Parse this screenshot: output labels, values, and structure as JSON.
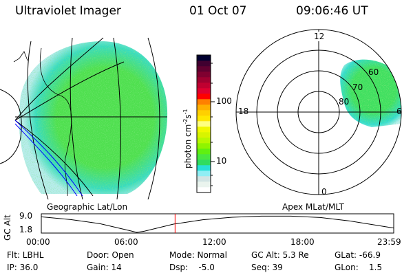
{
  "header": {
    "instrument": "Ultraviolet Imager",
    "date": "01 Oct 07",
    "time": "09:06:46 UT"
  },
  "colorbar": {
    "label": "photon cm",
    "label_sup1": "-2",
    "label_mid": "s",
    "label_sup2": "-1",
    "ticks": [
      "100",
      "10"
    ],
    "colors": [
      "#ffffff",
      "#eaf4ee",
      "#d2e4e4",
      "#90eef4",
      "#28e0d8",
      "#30dc60",
      "#48e840",
      "#60f010",
      "#90f400",
      "#b8f800",
      "#d8f400",
      "#f0f800",
      "#ffff80",
      "#ffe800",
      "#ffd000",
      "#ffb000",
      "#ff8000",
      "#ff0000",
      "#e00030",
      "#c00030",
      "#a00030",
      "#800030",
      "#600030",
      "#400030",
      "#000030"
    ]
  },
  "polar": {
    "mlt_labels": {
      "top": "12",
      "bottom": "0",
      "left": "18",
      "right": "6"
    },
    "lat_labels": [
      "80",
      "70",
      "60"
    ]
  },
  "timeline": {
    "left_label": "Geographic Lat/Lon",
    "right_label": "Apex MLat/MLT",
    "ylabel": "GC Alt",
    "yticks": [
      "9.0",
      "1.8"
    ],
    "xticks": [
      "00:00",
      "06:00",
      "12:00",
      "18:00",
      "23:59"
    ],
    "current_time_hours": 9.11,
    "cursor_color": "#ff0000"
  },
  "chart_data": {
    "type": "line",
    "ylabel": "GC Alt",
    "ylim": [
      1.8,
      9.0
    ],
    "x": [
      0,
      2,
      4,
      6,
      6.5,
      7,
      9,
      11,
      13,
      15,
      17,
      19,
      21,
      23.98
    ],
    "values": [
      8.6,
      7.4,
      5.6,
      2.6,
      1.8,
      2.3,
      5.4,
      7.3,
      8.4,
      8.9,
      8.9,
      8.3,
      6.8,
      3.7
    ]
  },
  "status": {
    "flt": "Flt: LBHL",
    "door": "Door: Open",
    "mode": "Mode: Normal",
    "gcalt": "GC Alt: 5.3 Re",
    "glat": "GLat: -66.9",
    "ip": "IP: 36.0",
    "gain": "Gain: 14",
    "dsp": "Dsp:    -5.0",
    "seq": "Seq: 39",
    "glon": "GLon:    1.5"
  }
}
